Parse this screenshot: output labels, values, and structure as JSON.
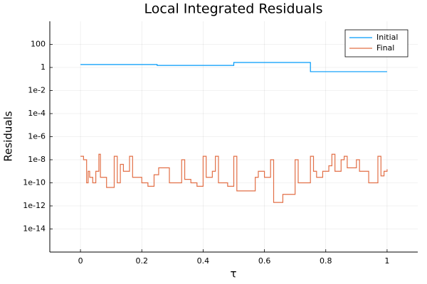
{
  "chart_data": {
    "type": "line",
    "step": "post",
    "title": "Local Integrated Residuals",
    "xlabel": "τ",
    "ylabel": "Residuals",
    "xlim": [
      -0.1,
      1.1
    ],
    "xticks": [
      0,
      0.2,
      0.4,
      0.6,
      0.8,
      1
    ],
    "ylim": [
      1e-16,
      10000
    ],
    "yscale": "log",
    "yticks": [
      {
        "value": 1e-14,
        "label": "1e-14"
      },
      {
        "value": 1e-12,
        "label": "1e-12"
      },
      {
        "value": 1e-10,
        "label": "1e-10"
      },
      {
        "value": 1e-08,
        "label": "1e-8"
      },
      {
        "value": 1e-06,
        "label": "1e-6"
      },
      {
        "value": 0.0001,
        "label": "1e-4"
      },
      {
        "value": 0.01,
        "label": "1e-2"
      },
      1,
      100
    ],
    "grid": true,
    "legend": "top-right",
    "series": [
      {
        "name": "Initial",
        "color": "#009af9",
        "x": [
          0,
          0.25,
          0.5,
          0.75,
          1
        ],
        "values": [
          1.8,
          1.5,
          2.7,
          0.43,
          0.43
        ]
      },
      {
        "name": "Final",
        "color": "#e26f46",
        "x": [
          0,
          0.01,
          0.02,
          0.025,
          0.03,
          0.04,
          0.05,
          0.06,
          0.065,
          0.085,
          0.11,
          0.12,
          0.13,
          0.14,
          0.16,
          0.17,
          0.2,
          0.22,
          0.24,
          0.255,
          0.29,
          0.33,
          0.34,
          0.36,
          0.38,
          0.4,
          0.41,
          0.43,
          0.44,
          0.45,
          0.48,
          0.5,
          0.51,
          0.57,
          0.58,
          0.6,
          0.62,
          0.63,
          0.66,
          0.7,
          0.71,
          0.75,
          0.76,
          0.77,
          0.79,
          0.81,
          0.82,
          0.83,
          0.85,
          0.86,
          0.87,
          0.9,
          0.91,
          0.94,
          0.97,
          0.98,
          0.99,
          1
        ],
        "values": [
          2e-08,
          1e-08,
          1e-10,
          1e-09,
          3e-10,
          1e-10,
          1e-09,
          3e-08,
          3e-10,
          4e-11,
          2e-08,
          1e-10,
          4e-09,
          1e-09,
          2e-08,
          3e-10,
          1e-10,
          5e-11,
          5e-10,
          2e-09,
          1e-10,
          1e-08,
          2e-10,
          1e-10,
          5e-11,
          2e-08,
          3e-10,
          1e-09,
          2e-08,
          1e-10,
          5e-11,
          2e-08,
          2e-11,
          3e-10,
          1e-09,
          3e-10,
          1e-08,
          2e-12,
          1e-11,
          1e-08,
          1e-10,
          2e-08,
          1e-09,
          3e-10,
          1e-09,
          3e-09,
          3e-08,
          1e-09,
          1e-08,
          2e-08,
          2e-09,
          1e-08,
          1e-09,
          1e-10,
          2e-08,
          4e-10,
          1e-09,
          1.5e-09
        ]
      }
    ]
  }
}
